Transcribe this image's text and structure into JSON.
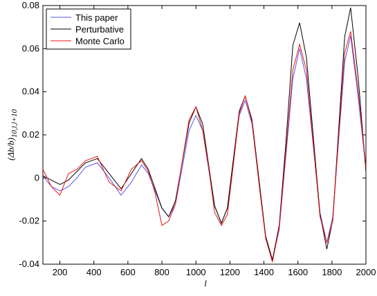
{
  "chart_data": {
    "type": "line",
    "xlabel": "l",
    "ylabel": {
      "text": "(Δb/b)",
      "subscript": "10,l,l+10"
    },
    "x": [
      100,
      150,
      200,
      250,
      300,
      350,
      420,
      490,
      560,
      620,
      680,
      720,
      760,
      800,
      840,
      880,
      920,
      960,
      1000,
      1040,
      1075,
      1110,
      1150,
      1185,
      1220,
      1255,
      1290,
      1330,
      1370,
      1410,
      1450,
      1490,
      1530,
      1570,
      1610,
      1650,
      1690,
      1730,
      1770,
      1805,
      1840,
      1875,
      1910,
      1955,
      2000
    ],
    "series": [
      {
        "name": "This paper",
        "color": "#5555ee",
        "values": [
          0.001,
          -0.004,
          -0.006,
          -0.004,
          0,
          0.005,
          0.007,
          0,
          -0.008,
          -0.002,
          0.006,
          0.002,
          -0.006,
          -0.014,
          -0.018,
          -0.012,
          0.005,
          0.022,
          0.029,
          0.022,
          0.004,
          -0.013,
          -0.021,
          -0.014,
          0.0075,
          0.029,
          0.036,
          0.025,
          -0.001,
          -0.027,
          -0.038,
          -0.024,
          0.011,
          0.046,
          0.06,
          0.046,
          0.015,
          -0.016,
          -0.03,
          -0.018,
          0.018,
          0.054,
          0.066,
          0.037,
          0.004
        ]
      },
      {
        "name": "Perturbative",
        "color": "#000000",
        "values": [
          0.001,
          -0.001,
          -0.003,
          -0.001,
          0.003,
          0.007,
          0.009,
          0.002,
          -0.005,
          0.002,
          0.009,
          0.004,
          -0.005,
          -0.014,
          -0.018,
          -0.0105,
          0.0075,
          0.0255,
          0.033,
          0.025,
          0.006,
          -0.013,
          -0.021,
          -0.014,
          0.0085,
          0.031,
          0.038,
          0.027,
          0,
          -0.027,
          -0.038,
          -0.022,
          0.017,
          0.0615,
          0.072,
          0.056,
          0.0195,
          -0.017,
          -0.033,
          -0.0195,
          0.023,
          0.0655,
          0.079,
          0.046,
          0.003
        ]
      },
      {
        "name": "Monte Carlo",
        "color": "#ee1111",
        "values": [
          0.004,
          -0.004,
          -0.008,
          0.002,
          0.004,
          0.008,
          0.01,
          -0.002,
          -0.006,
          0.004,
          0.008,
          0.003,
          -0.007,
          -0.022,
          -0.02,
          -0.012,
          0.008,
          0.027,
          0.033,
          0.022,
          0.005,
          -0.016,
          -0.022,
          -0.017,
          0.006,
          0.03,
          0.038,
          0.026,
          -0.002,
          -0.028,
          -0.039,
          -0.023,
          0.013,
          0.05,
          0.062,
          0.05,
          0.016,
          -0.018,
          -0.03,
          -0.02,
          0.02,
          0.058,
          0.068,
          0.04,
          0.005
        ]
      }
    ],
    "xlim": [
      100,
      2000
    ],
    "xticks": [
      200,
      400,
      600,
      800,
      1000,
      1200,
      1400,
      1600,
      1800,
      2000
    ],
    "ylim": [
      -0.04,
      0.08
    ],
    "yticks": [
      -0.04,
      -0.02,
      0,
      0.02,
      0.04,
      0.06,
      0.08
    ],
    "legend": "upper-left",
    "grid": false
  }
}
